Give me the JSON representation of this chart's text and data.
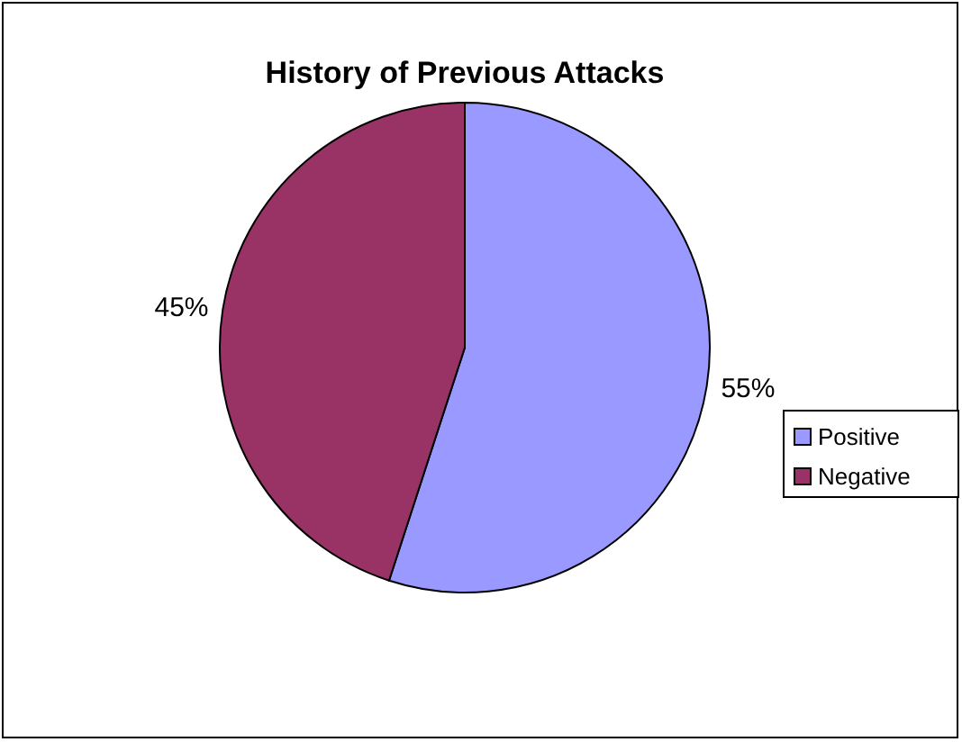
{
  "chart_data": {
    "type": "pie",
    "title": "History of Previous Attacks",
    "categories": [
      "Positive",
      "Negative"
    ],
    "values": [
      55,
      45
    ],
    "colors": [
      "#9999ff",
      "#993366"
    ],
    "value_labels": [
      "55%",
      "45%"
    ],
    "legend": "right"
  }
}
